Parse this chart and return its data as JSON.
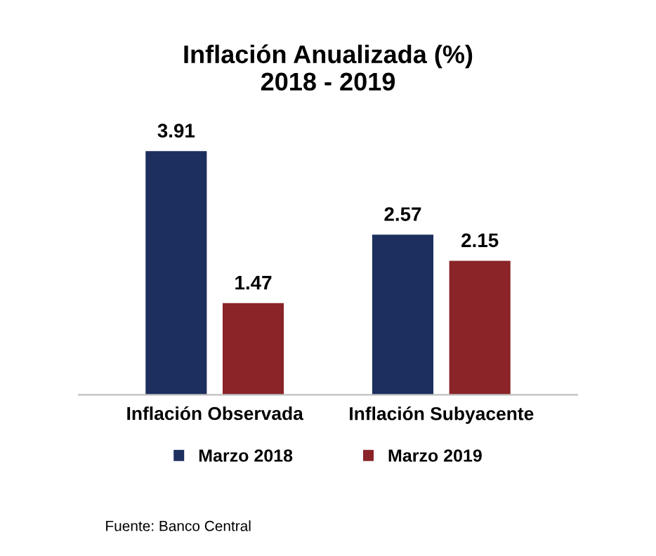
{
  "chart_data": {
    "type": "bar",
    "title": "Inflación Anualizada (%)\n2018 - 2019",
    "categories": [
      "Inflación Observada",
      "Inflación Subyacente"
    ],
    "series": [
      {
        "name": "Marzo 2018",
        "color": "#1c2f5e",
        "values": [
          3.91,
          2.57
        ]
      },
      {
        "name": "Marzo 2019",
        "color": "#8a2428",
        "values": [
          1.47,
          2.15
        ]
      }
    ],
    "data_labels": true,
    "legend": "bottom",
    "grid": false,
    "annotations": [
      "Fuente: Banco Central"
    ]
  }
}
